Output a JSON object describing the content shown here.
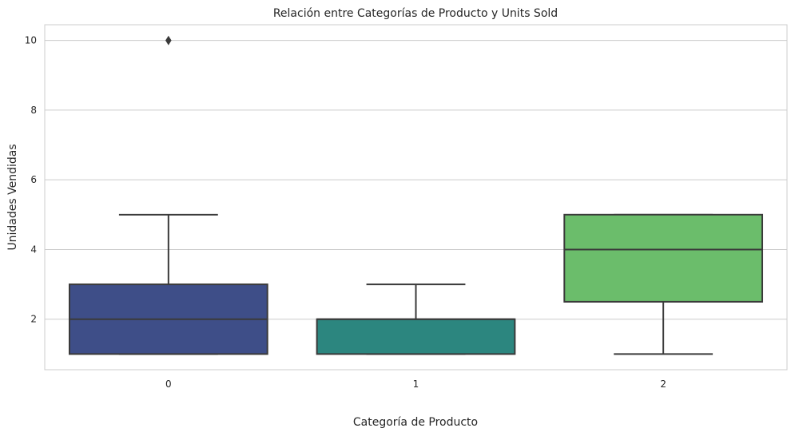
{
  "chart_data": {
    "type": "box",
    "title": "Relación entre Categorías de Producto y Units Sold",
    "xlabel": "Categoría de Producto",
    "ylabel": "Unidades Vendidas",
    "ylim": [
      0.55,
      10.45
    ],
    "yticks": [
      2,
      4,
      6,
      8,
      10
    ],
    "grid": "horizontal",
    "categories": [
      "0",
      "1",
      "2"
    ],
    "boxes": [
      {
        "category": "0",
        "whisker_low": 1,
        "q1": 1,
        "median": 2,
        "q3": 3,
        "whisker_high": 5,
        "outliers": [
          10
        ],
        "color": "#3e4e88"
      },
      {
        "category": "1",
        "whisker_low": 1,
        "q1": 1,
        "median": 2,
        "q3": 2,
        "whisker_high": 3,
        "outliers": [],
        "color": "#2c867f"
      },
      {
        "category": "2",
        "whisker_low": 1,
        "q1": 2.5,
        "median": 4,
        "q3": 5,
        "whisker_high": 5,
        "outliers": [],
        "color": "#6bbd6b"
      }
    ]
  }
}
